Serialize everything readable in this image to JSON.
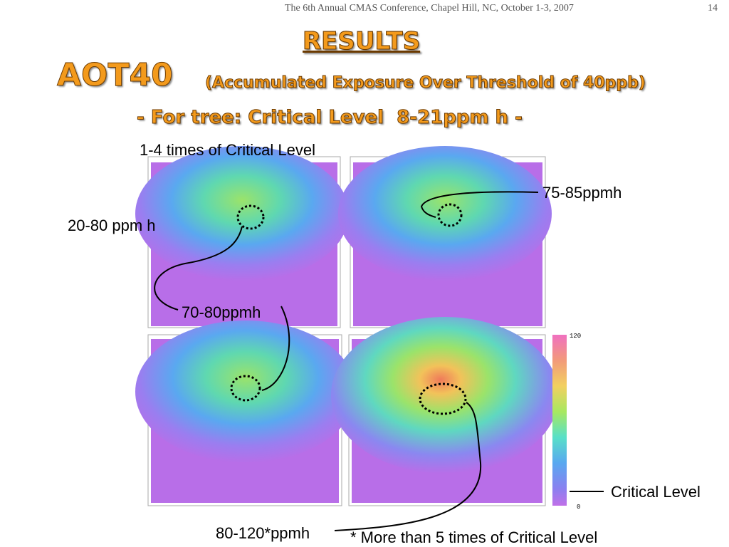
{
  "header": {
    "conference": "The 6th Annual CMAS Conference, Chapel Hill, NC, October 1-3, 2007",
    "page": "14"
  },
  "title": {
    "heading": "RESULTS",
    "main": "AOT40",
    "subtitle": "(Accumulated Exposure Over Threshold of 40ppb)",
    "line2": "- For tree: Critical Level  8-21ppm h -"
  },
  "annotations": [
    "1-4 times of Critical Level",
    "20-80 ppm h",
    "75-85ppmh",
    "70-80ppmh",
    "80-120*ppmh",
    "* More than 5 times of Critical Level",
    "Critical Level"
  ],
  "colorbar": {
    "max": 120,
    "min": 0
  }
}
